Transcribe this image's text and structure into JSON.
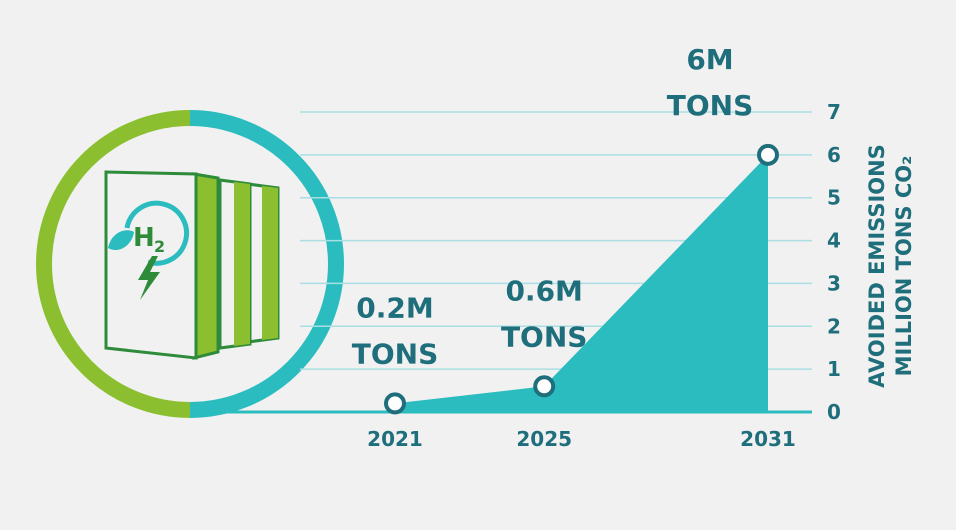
{
  "colors": {
    "background": "#f1f1f1",
    "teal": "#2bbcbf",
    "green": "#8cbf2f",
    "dark_teal": "#1f6e7c",
    "grid": "#a9dfe2"
  },
  "icon": {
    "name": "hydrogen-fuel-cell-icon",
    "text_main": "H",
    "text_sub": "2"
  },
  "chart_data": {
    "type": "area",
    "x": [
      "2021",
      "2025",
      "2031"
    ],
    "values": [
      0.2,
      0.6,
      6
    ],
    "point_labels": [
      [
        "0.2M",
        "TONS"
      ],
      [
        "0.6M",
        "TONS"
      ],
      [
        "6M",
        "TONS"
      ]
    ],
    "y_ticks": [
      "0",
      "1",
      "2",
      "3",
      "4",
      "5",
      "6",
      "7"
    ],
    "ylim": [
      0,
      7
    ],
    "ylabel": [
      "AVOIDED EMISSIONS",
      "MILLION TONS CO₂"
    ],
    "grid": true
  }
}
